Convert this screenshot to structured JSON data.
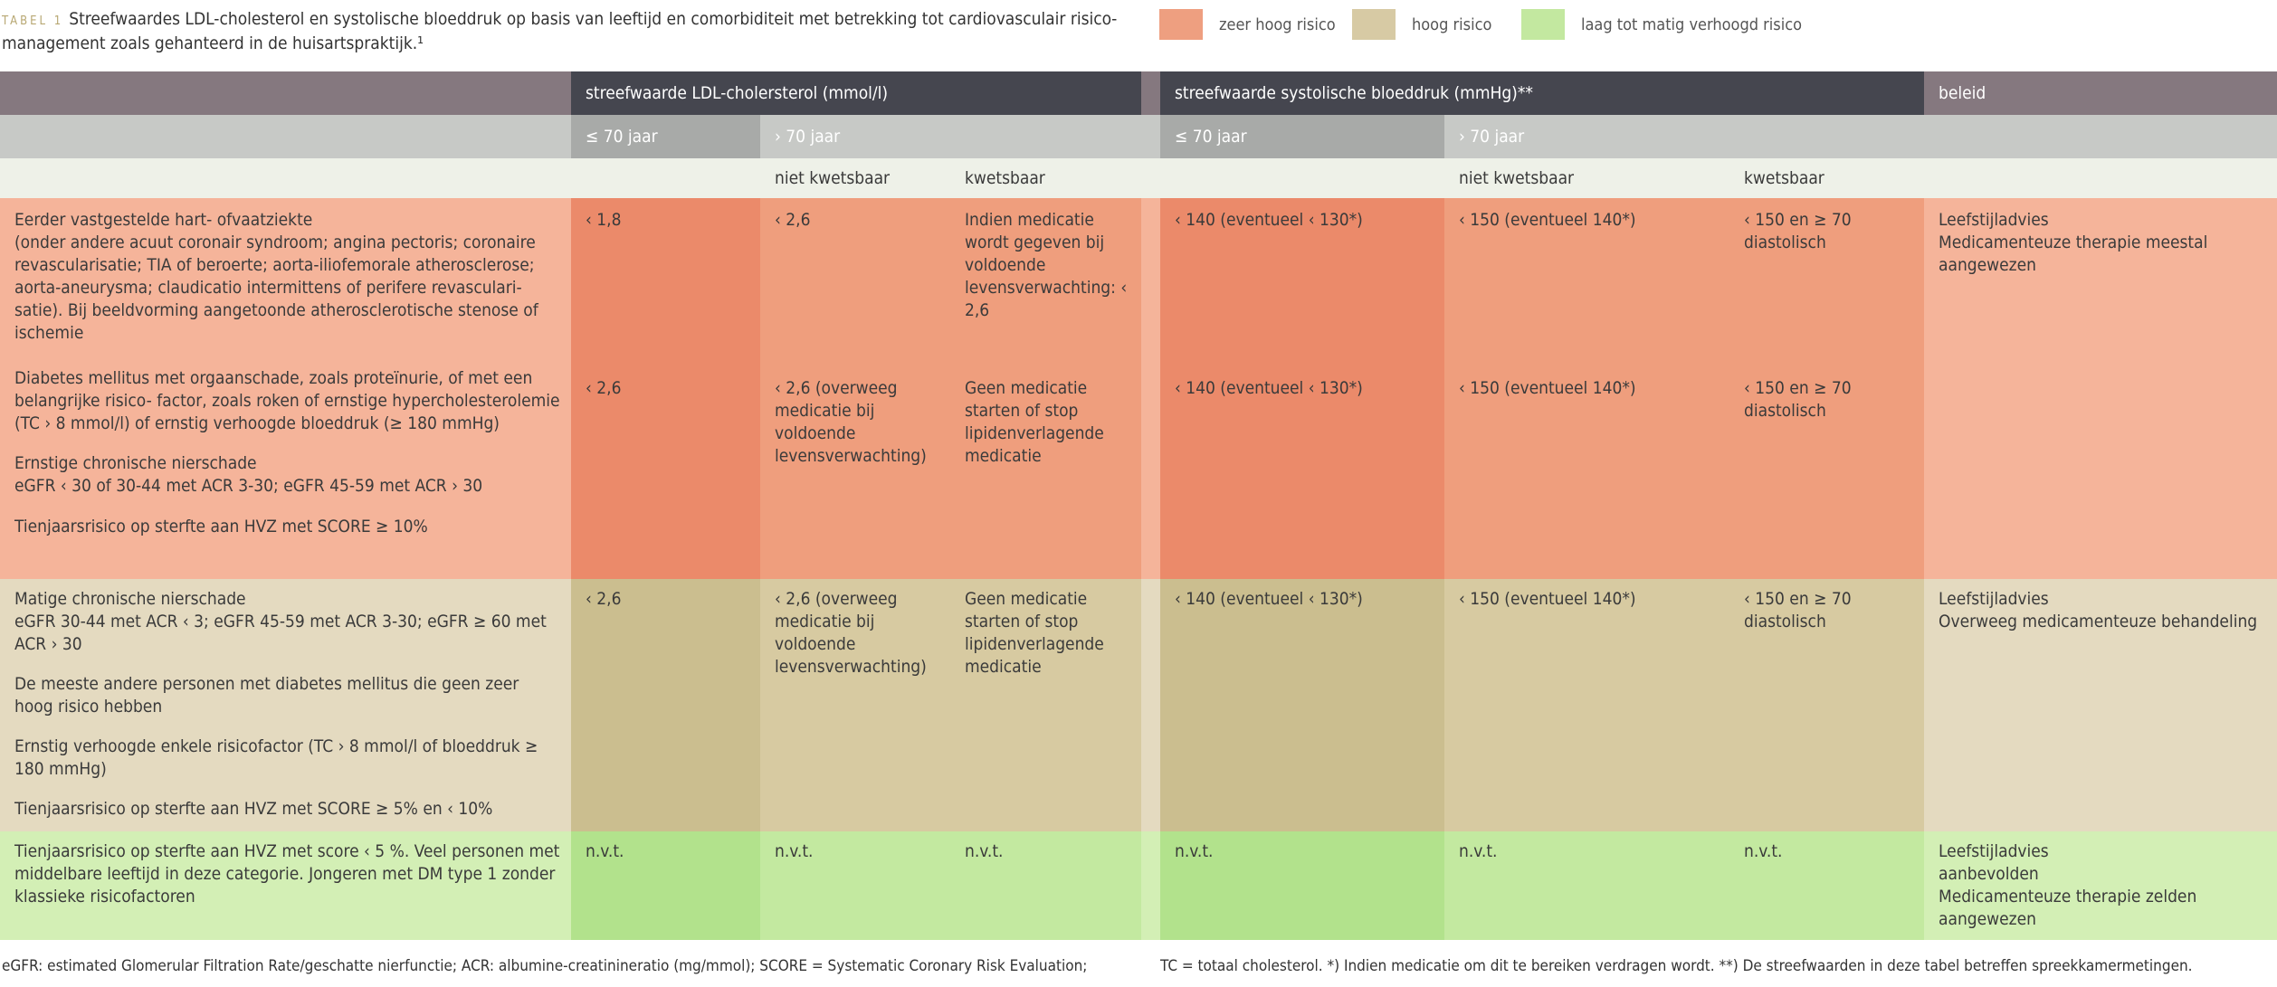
{
  "title": {
    "label": "TABEL 1",
    "text": "Streefwaardes LDL-cholesterol en systolische bloeddruk op basis van leeftijd en comorbiditeit met betrekking tot cardiovasculair risico­management zoals gehanteerd in de huisartspraktijk.¹"
  },
  "legend": [
    {
      "label": "zeer hoog risico",
      "color": "#ee9f80"
    },
    {
      "label": "hoog risico",
      "color": "#d7caa4"
    },
    {
      "label": "laag tot matig verhoogd risico",
      "color": "#c3e8a0"
    }
  ],
  "colors": {
    "header_dark": "#45464f",
    "header_left": "#85787f",
    "header_right": "#85787f",
    "sub_dark": "#a8aaa8",
    "sub_light": "#c7c9c6",
    "sub3_bg": "#eef1e8",
    "red_light": "#f5b49a",
    "red_mid": "#ef9e7d",
    "red_dark": "#eb8a6a",
    "tan_light": "#e4dac0",
    "tan_mid": "#d7caa1",
    "tan_dark": "#cbbe8f",
    "green_light": "#d3efb5",
    "green_mid": "#c3e9a0",
    "green_dark": "#b2e28c"
  },
  "headers": {
    "ldl": "streefwaarde LDL-cholersterol (mmol/l)",
    "bp": "streefwaarde systolische bloeddruk (mmHg)**",
    "beleid": "beleid",
    "ldl_le70": "≤ 70 jaar",
    "ldl_gt70": "› 70 jaar",
    "bp_le70": "≤ 70 jaar",
    "bp_gt70": "› 70 jaar",
    "ldl_niet": "niet kwetsbaar",
    "ldl_kw": "kwetsbaar",
    "bp_niet": "niet kwetsbaar",
    "bp_kw": "kwetsbaar"
  },
  "rows": {
    "red": {
      "desc": [
        "Eerder vastgestelde hart- ofvaatziekte",
        "(onder andere acuut coronair syndroom; angina pectoris; coronaire revascularisatie; TIA of beroerte; aorta-iliofemorale atherosclerose; aorta-aneurysma; claudicatio intermittens of perifere revasculari­satie). Bij beeldvorming aangetoonde atherosclerotische stenose of ischemie",
        "Diabetes mellitus met orgaanschade, zoals proteïnurie, of met een belangrijke risico- factor, zoals roken of ernstige hypercholes­terolemie (TC › 8 mmol/l) of ernstig verhoogde bloeddruk (≥ 180 mmHg)",
        "Ernstige chronische nierschade",
        "eGFR ‹ 30 of 30-44 met ACR 3-30; eGFR 45-59 met ACR › 30",
        "Tienjaarsrisico op sterfte aan HVZ met SCORE ≥ 10%"
      ],
      "ldl_le70": [
        "‹ 1,8",
        "‹ 2,6"
      ],
      "ldl_niet": [
        "‹ 2,6",
        "‹ 2,6 (overweeg medicatie bij voldoende levensverwachting)"
      ],
      "ldl_kw": [
        "Indien medicatie wordt gegeven bij voldoende levensverwachting: ‹ 2,6",
        "Geen medicatie starten of stop lipidenverlagende medicatie"
      ],
      "bp_le70": [
        "‹ 140 (eventueel ‹ 130*)",
        "‹ 140 (eventueel ‹ 130*)"
      ],
      "bp_niet": [
        "‹ 150 (eventueel 140*)",
        "‹ 150 (eventueel 140*)"
      ],
      "bp_kw": [
        "‹ 150 en ≥ 70 diastolisch",
        "‹ 150 en ≥ 70 diastolisch"
      ],
      "beleid": [
        "Leefstijladvies",
        "Medicamenteuze therapie meestal aangewezen"
      ]
    },
    "tan": {
      "desc": [
        "Matige chronische nierschade",
        "eGFR 30-44 met ACR ‹ 3; eGFR 45-59 met ACR 3-30; eGFR ≥ 60 met ACR › 30",
        "De meeste andere personen met diabetes mellitus die geen zeer hoog risico hebben",
        "Ernstig verhoogde enkele risicofactor (TC › 8 mmol/l of bloeddruk ≥ 180 mmHg)",
        "Tienjaarsrisico op sterfte aan HVZ met SCORE ≥ 5% en ‹ 10%"
      ],
      "ldl_le70": "‹ 2,6",
      "ldl_niet": "‹ 2,6 (overweeg medicatie bij voldoende levensverwachting)",
      "ldl_kw": "Geen medicatie starten of stop lipidenverlagende medicatie",
      "bp_le70": "‹ 140 (eventueel ‹ 130*)",
      "bp_niet": "‹ 150 (eventueel 140*)",
      "bp_kw": "‹ 150 en ≥ 70 diastolisch",
      "beleid": [
        "Leefstijladvies",
        "Overweeg medicamenteuze behandeling"
      ]
    },
    "green": {
      "desc": "Tienjaarsrisico op sterfte aan HVZ met score ‹ 5 %. Veel personen met middelbare leeftijd in deze categorie. Jongeren met DM type 1 zonder klassieke risicofactoren",
      "na": "n.v.t.",
      "beleid": [
        "Leefstijladvies",
        "aanbevolden",
        "Medicamenteuze therapie zelden aangewezen"
      ]
    }
  },
  "footnotes": {
    "left": "eGFR: estimated Glomerular Filtration Rate/geschatte nierfunctie; ACR: albumine-creatinineratio (mg/mmol); SCORE = Systematic Coronary Risk Evaluation;",
    "right": "TC = totaal cholesterol.   *) Indien medicatie om dit te bereiken verdragen wordt.  **) De streefwaarden in deze tabel betreffen spreekkamermetingen."
  }
}
